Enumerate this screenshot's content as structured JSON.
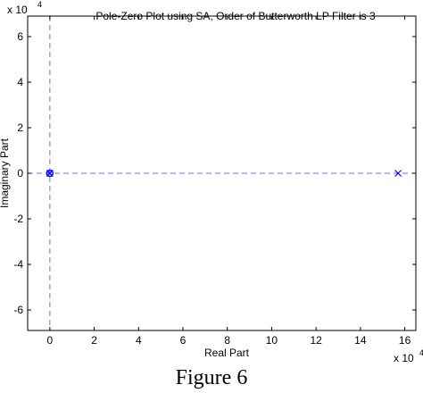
{
  "figure_caption": "Figure 6",
  "chart_data": {
    "type": "scatter",
    "title": "Pole-Zero Plot using SA, Order of Butterworth LP Filter is 3",
    "xlabel": "Real Part",
    "ylabel": "Imaginary Part",
    "x_exponent_label": "x 10",
    "x_exponent_power": "4",
    "y_exponent_label": "x 10",
    "y_exponent_power": "4",
    "xlim": [
      -1,
      16.5
    ],
    "ylim": [
      -6.9,
      6.9
    ],
    "x_unit_scale": 10000,
    "y_unit_scale": 10000,
    "xticks": [
      0,
      2,
      4,
      6,
      8,
      10,
      12,
      14,
      16
    ],
    "yticks": [
      -6,
      -4,
      -2,
      0,
      2,
      4,
      6
    ],
    "grid": false,
    "axis_color": "#000000",
    "marker_color": "#0000ff",
    "guide_line_color": "#6b6bff",
    "series": [
      {
        "marker": "x",
        "points": [
          {
            "x": 0,
            "y": 0
          },
          {
            "x": 0,
            "y": 0
          },
          {
            "x": 15.7,
            "y": 0
          }
        ]
      },
      {
        "marker": "o",
        "points": [
          {
            "x": 0,
            "y": 0
          },
          {
            "x": 0,
            "y": 0
          },
          {
            "x": 0,
            "y": 0
          }
        ]
      }
    ]
  }
}
